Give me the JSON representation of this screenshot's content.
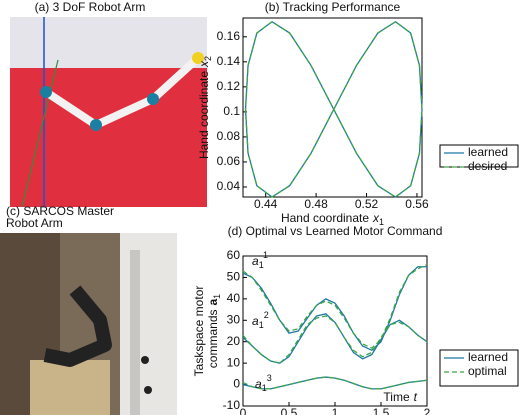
{
  "panels": [
    {
      "title": "(a) 3 DoF Robot Arm"
    },
    {
      "title_lines": [
        "(c) SARCOS Master",
        "Robot Arm"
      ]
    }
  ],
  "chart_data": [
    {
      "type": "line",
      "title": "(b) Tracking Performance",
      "xlabel": {
        "text": "Hand coordinate",
        "var": "x",
        "sub": "1"
      },
      "ylabel": {
        "text": "Hand coordinate",
        "var": "x",
        "sub": "2"
      },
      "xlim": [
        0.422,
        0.564
      ],
      "ylim": [
        0.032,
        0.175
      ],
      "xticks": [
        0.44,
        0.48,
        0.52,
        0.56
      ],
      "yticks": [
        0.04,
        0.06,
        0.08,
        0.1,
        0.12,
        0.14,
        0.16
      ],
      "x": [
        0.494,
        0.512,
        0.529,
        0.543,
        0.555,
        0.562,
        0.564,
        0.562,
        0.555,
        0.543,
        0.529,
        0.512,
        0.494,
        0.476,
        0.459,
        0.445,
        0.433,
        0.426,
        0.424,
        0.426,
        0.433,
        0.445,
        0.459,
        0.476,
        0.494
      ],
      "series": [
        {
          "name": "learned",
          "color": "#1f78a4",
          "dash": false,
          "values": [
            0.102,
            0.137,
            0.163,
            0.172,
            0.163,
            0.137,
            0.102,
            0.067,
            0.041,
            0.032,
            0.041,
            0.067,
            0.102,
            0.137,
            0.163,
            0.172,
            0.163,
            0.137,
            0.102,
            0.067,
            0.041,
            0.032,
            0.041,
            0.067,
            0.102
          ]
        },
        {
          "name": "desired",
          "color": "#3aa645",
          "dash": true,
          "values": [
            0.102,
            0.137,
            0.163,
            0.172,
            0.163,
            0.137,
            0.102,
            0.067,
            0.041,
            0.032,
            0.041,
            0.067,
            0.102,
            0.137,
            0.163,
            0.172,
            0.163,
            0.137,
            0.102,
            0.067,
            0.041,
            0.032,
            0.041,
            0.067,
            0.102
          ]
        }
      ]
    },
    {
      "type": "line",
      "title": "(d) Optimal vs Learned Motor Command",
      "xlabel": {
        "text": "Time",
        "var": "t"
      },
      "ylabel": {
        "lines": [
          "Taskspace motor",
          "commands"
        ],
        "var": "a",
        "sub": "1"
      },
      "annotations": [
        {
          "base": "a",
          "sub": "1",
          "sup": "1"
        },
        {
          "base": "a",
          "sub": "1",
          "sup": "2"
        },
        {
          "base": "a",
          "sub": "1",
          "sup": "3"
        }
      ],
      "xlim": [
        0,
        2
      ],
      "ylim": [
        -10,
        60
      ],
      "xticks": [
        0,
        0.5,
        1,
        1.5,
        2
      ],
      "yticks": [
        -10,
        0,
        10,
        20,
        30,
        40,
        50,
        60
      ],
      "x": [
        0,
        0.1,
        0.2,
        0.3,
        0.4,
        0.5,
        0.6,
        0.7,
        0.8,
        0.9,
        1,
        1.1,
        1.2,
        1.3,
        1.4,
        1.5,
        1.6,
        1.7,
        1.8,
        1.9,
        2
      ],
      "series": [
        {
          "name": "learned",
          "color": "#1f78a4",
          "dash": false,
          "values": [
            [
              52,
              50,
              45,
              38,
              30,
              24,
              25,
              31,
              37,
              40,
              38,
              32,
              24,
              18,
              16,
              20,
              30,
              42,
              51,
              55,
              55
            ],
            [
              22,
              18,
              14,
              11,
              10,
              13,
              20,
              27,
              32,
              33,
              29,
              22,
              15,
              12,
              14,
              21,
              28,
              30,
              27,
              23,
              20
            ],
            [
              0,
              -1,
              -2,
              -2,
              -1,
              0,
              1,
              2,
              3,
              3.5,
              3,
              2,
              0.5,
              -1,
              -2,
              -2,
              -1,
              0,
              1,
              1.5,
              2
            ]
          ]
        },
        {
          "name": "optimal",
          "color": "#3aa645",
          "dash": true,
          "values": [
            [
              53,
              50,
              44,
              37,
              30,
              25,
              26,
              32,
              37,
              39,
              37,
              31,
              24,
              19,
              17,
              21,
              31,
              43,
              51,
              54,
              56
            ],
            [
              23,
              18,
              14,
              11,
              10,
              14,
              21,
              28,
              31,
              32,
              29,
              22,
              16,
              13,
              15,
              22,
              28,
              29,
              27,
              23,
              20
            ],
            [
              1,
              -1,
              -2,
              -2,
              -1,
              0,
              1,
              2,
              3,
              3.5,
              3,
              2,
              0.5,
              -1,
              -2,
              -2,
              -1,
              0,
              1,
              1.5,
              2
            ]
          ]
        }
      ]
    }
  ]
}
